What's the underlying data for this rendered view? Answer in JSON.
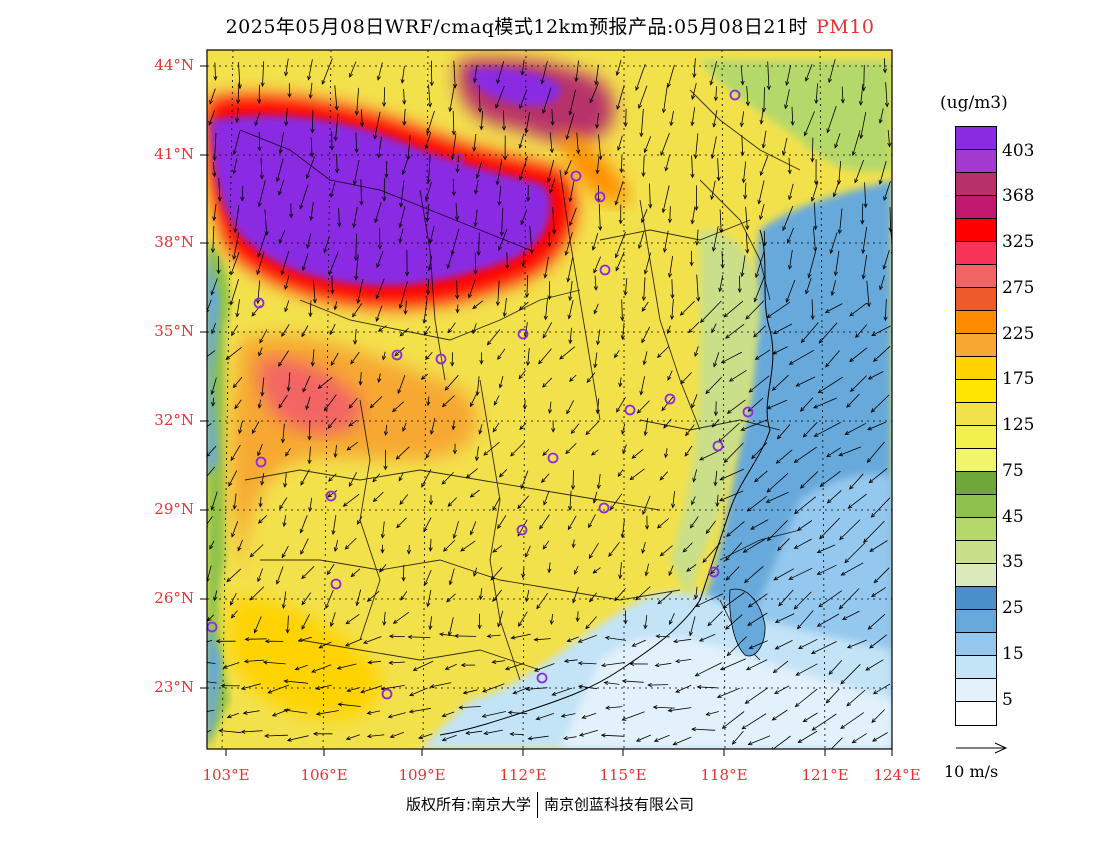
{
  "title": {
    "text": "2025年05月08日WRF/cmaq模式12km预报产品:05月08日21时",
    "pollutant": "PM10"
  },
  "map": {
    "lat_labels": [
      "44°N",
      "41°N",
      "38°N",
      "35°N",
      "32°N",
      "29°N",
      "26°N",
      "23°N"
    ],
    "lon_labels": [
      "103°E",
      "106°E",
      "109°E",
      "112°E",
      "115°E",
      "118°E",
      "121°E",
      "124°E"
    ],
    "lon_range": [
      103,
      124
    ],
    "lat_range": [
      21,
      44.5
    ],
    "background_color": "#f7e84c",
    "land_base_color": "#f3e14c"
  },
  "legend": {
    "units": "(ug/m3)",
    "labels": [
      "403",
      "368",
      "325",
      "275",
      "225",
      "175",
      "125",
      "75",
      "45",
      "35",
      "25",
      "15",
      "5"
    ],
    "colors": [
      "#8a2be2",
      "#a23ad0",
      "#b8306a",
      "#c2186e",
      "#ff0000",
      "#f73358",
      "#f36565",
      "#ee5a2b",
      "#ff8c00",
      "#f7a832",
      "#ffd300",
      "#ffe600",
      "#f3e14c",
      "#f2f04d",
      "#f0f56b",
      "#6fa73b",
      "#8fc24c",
      "#b5d86a",
      "#c9df8a",
      "#dcebbd",
      "#4a8fc7",
      "#68a9dc",
      "#95c8ee",
      "#c3e3f7",
      "#e2f1fb",
      "#ffffff"
    ]
  },
  "wind_scale": {
    "label": "10 m/s"
  },
  "footer": {
    "left": "版权所有:南京大学",
    "right": "南京创蓝科技有限公司"
  }
}
